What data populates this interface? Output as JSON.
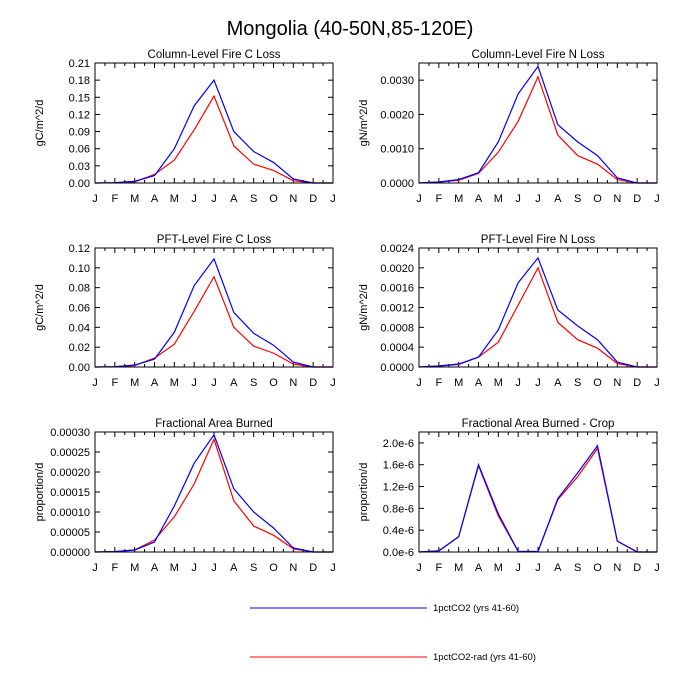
{
  "figure": {
    "title": "Mongolia (40-50N,85-120E)"
  },
  "colors": {
    "series_1": "#0000ff",
    "series_2": "#ff0000"
  },
  "legend": {
    "placement": "bottom-center",
    "entries": [
      {
        "label": "1pctCO2 (yrs 41-60)",
        "color": "#0000ff"
      },
      {
        "label": "1pctCO2-rad (yrs 41-60)",
        "color": "#ff0000"
      }
    ]
  },
  "chart_data": [
    {
      "type": "line",
      "title": "Column-Level Fire C Loss",
      "ylabel": "gC/m^2/d",
      "categories": [
        "J",
        "F",
        "M",
        "A",
        "M",
        "J",
        "J",
        "A",
        "S",
        "O",
        "N",
        "D",
        "J"
      ],
      "ylim": [
        0,
        0.21
      ],
      "yticks": [
        "0.00",
        "0.03",
        "0.06",
        "0.09",
        "0.12",
        "0.15",
        "0.18",
        "0.21"
      ],
      "series": [
        {
          "name": "1pctCO2 (yrs 41-60)",
          "color": "#0000ff",
          "values": [
            0.0,
            0.0005,
            0.003,
            0.013,
            0.06,
            0.135,
            0.18,
            0.09,
            0.055,
            0.036,
            0.007,
            0.0,
            0.0
          ]
        },
        {
          "name": "1pctCO2-rad (yrs 41-60)",
          "color": "#ff0000",
          "values": [
            0.0,
            0.0005,
            0.002,
            0.015,
            0.04,
            0.093,
            0.152,
            0.065,
            0.033,
            0.022,
            0.004,
            0.0,
            0.0
          ]
        }
      ]
    },
    {
      "type": "line",
      "title": "Column-Level Fire N Loss",
      "ylabel": "gN/m^2/d",
      "categories": [
        "J",
        "F",
        "M",
        "A",
        "M",
        "J",
        "J",
        "A",
        "S",
        "O",
        "N",
        "D",
        "J"
      ],
      "ylim": [
        0,
        0.0035
      ],
      "yticks": [
        "0.0000",
        "0.0010",
        "0.0020",
        "0.0030"
      ],
      "series": [
        {
          "name": "1pctCO2 (yrs 41-60)",
          "color": "#0000ff",
          "values": [
            0.0,
            3e-05,
            0.0001,
            0.0003,
            0.0012,
            0.0026,
            0.0034,
            0.0017,
            0.0012,
            0.0008,
            0.00015,
            0.0,
            0.0
          ]
        },
        {
          "name": "1pctCO2-rad (yrs 41-60)",
          "color": "#ff0000",
          "values": [
            0.0,
            3e-05,
            8e-05,
            0.00028,
            0.0009,
            0.0018,
            0.0031,
            0.0014,
            0.0008,
            0.00055,
            0.0001,
            0.0,
            0.0
          ]
        }
      ]
    },
    {
      "type": "line",
      "title": "PFT-Level Fire C Loss",
      "ylabel": "gC/m^2/d",
      "categories": [
        "J",
        "F",
        "M",
        "A",
        "M",
        "J",
        "J",
        "A",
        "S",
        "O",
        "N",
        "D",
        "J"
      ],
      "ylim": [
        0,
        0.12
      ],
      "yticks": [
        "0.00",
        "0.02",
        "0.04",
        "0.06",
        "0.08",
        "0.10",
        "0.12"
      ],
      "series": [
        {
          "name": "1pctCO2 (yrs 41-60)",
          "color": "#0000ff",
          "values": [
            0.0,
            0.0003,
            0.002,
            0.008,
            0.035,
            0.082,
            0.109,
            0.055,
            0.034,
            0.022,
            0.005,
            0.0,
            0.0
          ]
        },
        {
          "name": "1pctCO2-rad (yrs 41-60)",
          "color": "#ff0000",
          "values": [
            0.0,
            0.0003,
            0.0015,
            0.009,
            0.023,
            0.056,
            0.091,
            0.04,
            0.021,
            0.014,
            0.003,
            0.0,
            0.0
          ]
        }
      ]
    },
    {
      "type": "line",
      "title": "PFT-Level Fire N Loss",
      "ylabel": "gN/m^2/d",
      "categories": [
        "J",
        "F",
        "M",
        "A",
        "M",
        "J",
        "J",
        "A",
        "S",
        "O",
        "N",
        "D",
        "J"
      ],
      "ylim": [
        0,
        0.0024
      ],
      "yticks": [
        "0.0000",
        "0.0004",
        "0.0008",
        "0.0012",
        "0.0016",
        "0.0020",
        "0.0024"
      ],
      "series": [
        {
          "name": "1pctCO2 (yrs 41-60)",
          "color": "#0000ff",
          "values": [
            0.0,
            2e-05,
            6e-05,
            0.0002,
            0.00075,
            0.0017,
            0.0022,
            0.00115,
            0.00083,
            0.00055,
            0.0001,
            0.0,
            0.0
          ]
        },
        {
          "name": "1pctCO2-rad (yrs 41-60)",
          "color": "#ff0000",
          "values": [
            0.0,
            2e-05,
            5e-05,
            0.0002,
            0.0005,
            0.00125,
            0.002,
            0.0009,
            0.00055,
            0.00038,
            7e-05,
            0.0,
            0.0
          ]
        }
      ]
    },
    {
      "type": "line",
      "title": "Fractional Area Burned",
      "ylabel": "proportion/d",
      "categories": [
        "J",
        "F",
        "M",
        "A",
        "M",
        "J",
        "J",
        "A",
        "S",
        "O",
        "N",
        "D",
        "J"
      ],
      "ylim": [
        0,
        0.0003
      ],
      "yticks": [
        "0.00000",
        "0.00005",
        "0.00010",
        "0.00015",
        "0.00020",
        "0.00025",
        "0.00030"
      ],
      "series": [
        {
          "name": "1pctCO2 (yrs 41-60)",
          "color": "#0000ff",
          "values": [
            0.0,
            1e-06,
            5e-06,
            2.5e-05,
            0.000115,
            0.000222,
            0.000293,
            0.000158,
            0.0001,
            6e-05,
            1e-05,
            0.0,
            0.0
          ]
        },
        {
          "name": "1pctCO2-rad (yrs 41-60)",
          "color": "#ff0000",
          "values": [
            0.0,
            1e-06,
            5e-06,
            3e-05,
            8.8e-05,
            0.00017,
            0.000282,
            0.000128,
            6.5e-05,
            4.2e-05,
            8e-06,
            0.0,
            0.0
          ]
        }
      ]
    },
    {
      "type": "line",
      "title": "Fractional Area Burned - Crop",
      "ylabel": "proportion/d",
      "categories": [
        "J",
        "F",
        "M",
        "A",
        "M",
        "J",
        "J",
        "A",
        "S",
        "O",
        "N",
        "D",
        "J"
      ],
      "ylim": [
        0,
        2.2e-06
      ],
      "yticks": [
        "0.0e-6",
        "0.4e-6",
        "0.8e-6",
        "1.2e-6",
        "1.6e-6",
        "2.0e-6"
      ],
      "series": [
        {
          "name": "1pctCO2 (yrs 41-60)",
          "color": "#0000ff",
          "values": [
            0.0,
            2e-08,
            2.8e-07,
            1.6e-06,
            7e-07,
            1e-08,
            1e-08,
            9.8e-07,
            1.45e-06,
            1.95e-06,
            2e-07,
            0.0,
            0.0
          ]
        },
        {
          "name": "1pctCO2-rad (yrs 41-60)",
          "color": "#ff0000",
          "values": [
            0.0,
            2e-08,
            2.8e-07,
            1.58e-06,
            6.6e-07,
            1e-08,
            1e-08,
            9.6e-07,
            1.38e-06,
            1.9e-06,
            2e-07,
            0.0,
            0.0
          ]
        }
      ]
    }
  ]
}
